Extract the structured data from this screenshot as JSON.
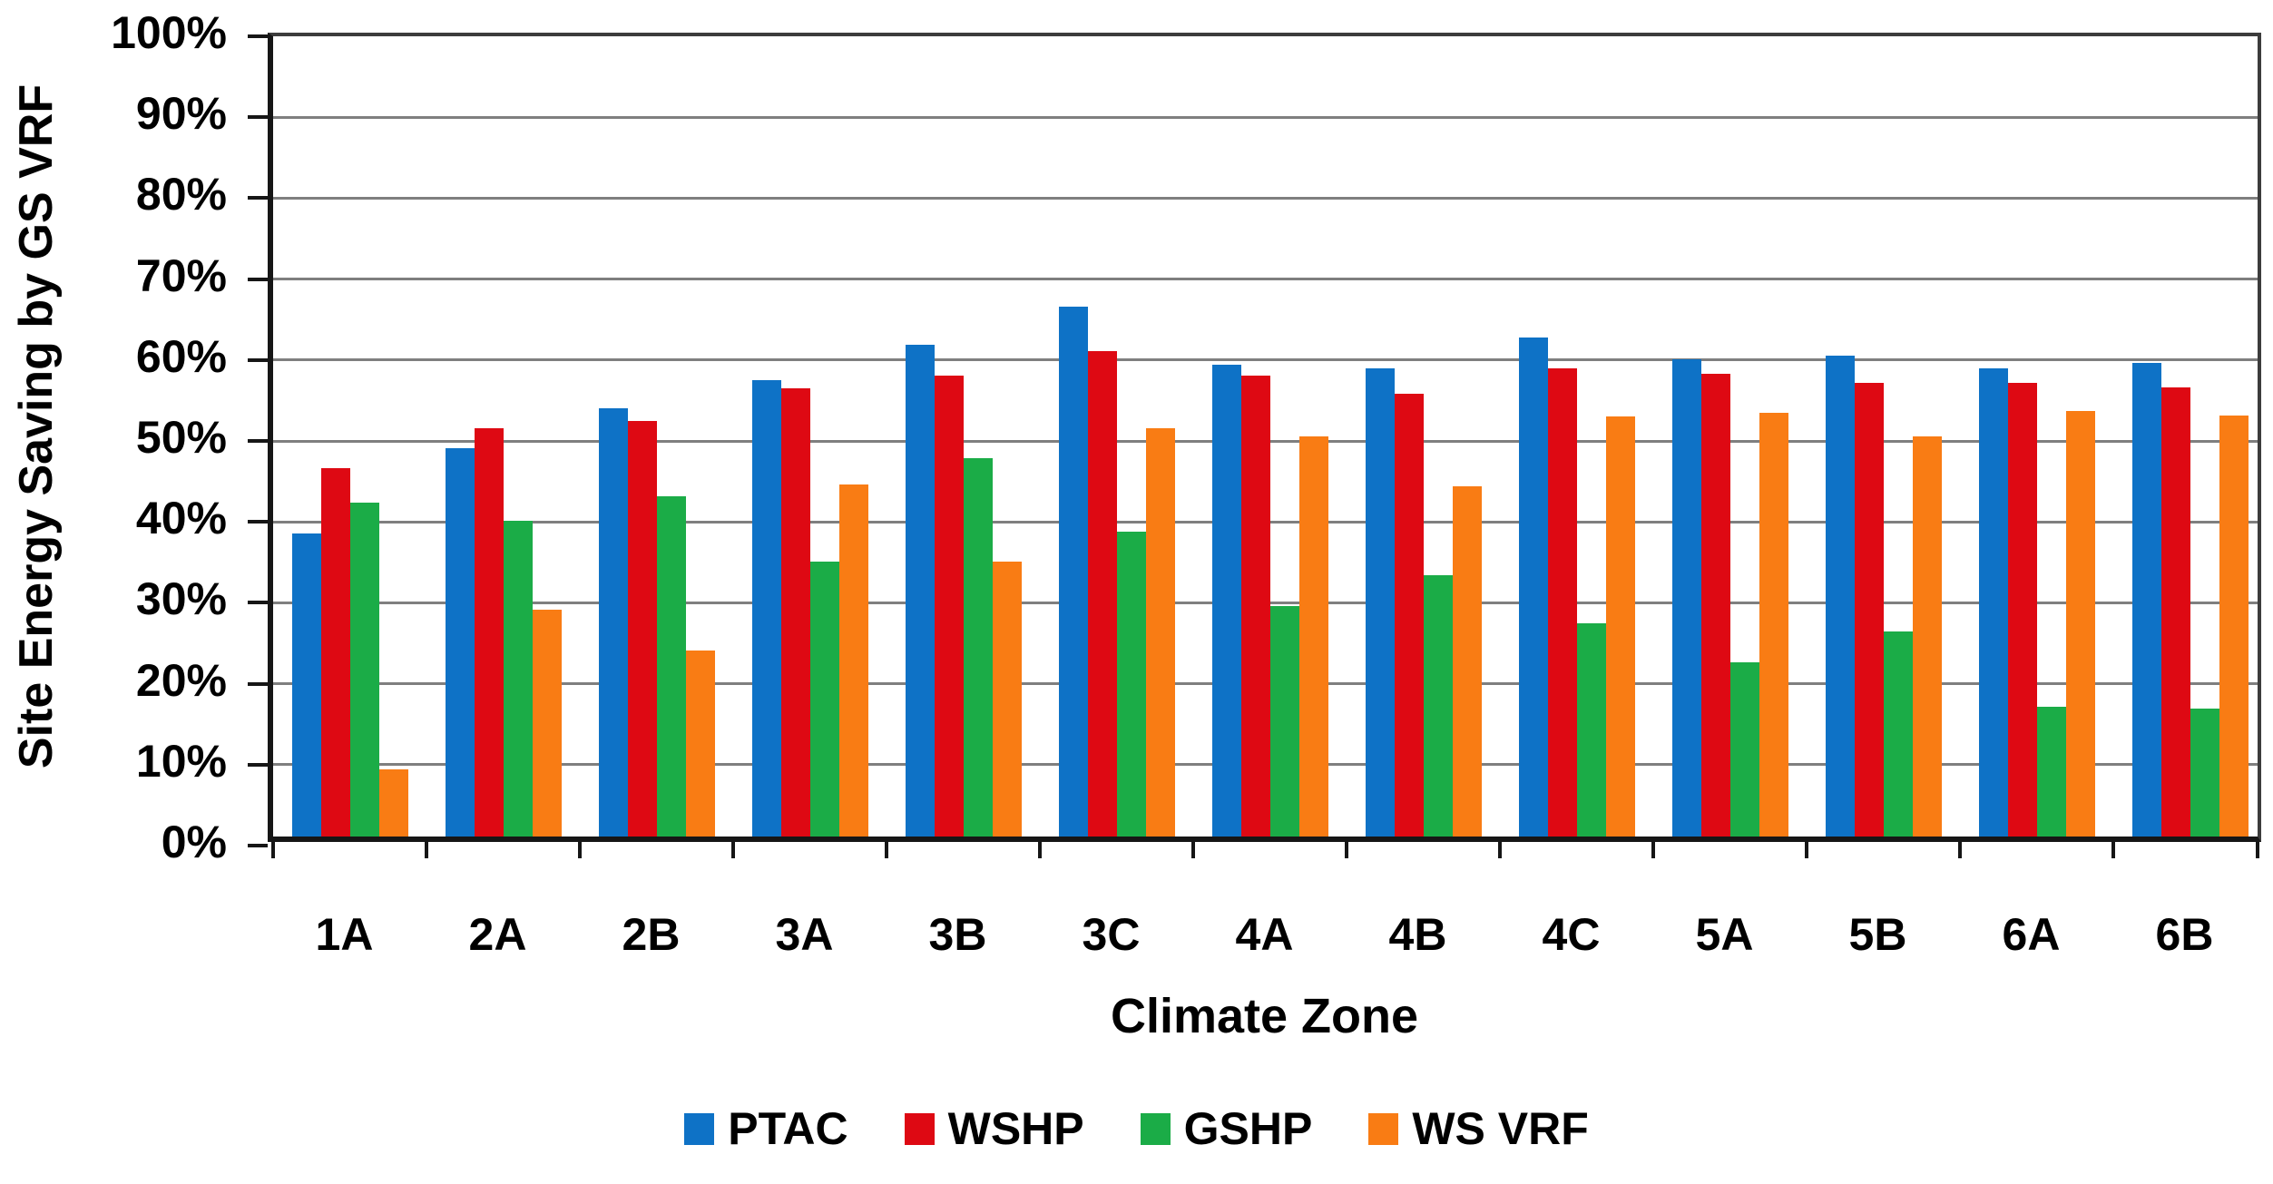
{
  "chart_data": {
    "type": "bar",
    "title": "",
    "xlabel": "Climate Zone",
    "ylabel": "Site Energy Saving by GS VRF",
    "ylim": [
      0,
      100
    ],
    "ytick_step": 10,
    "ytick_labels": [
      "0%",
      "10%",
      "20%",
      "30%",
      "40%",
      "50%",
      "60%",
      "70%",
      "80%",
      "90%",
      "100%"
    ],
    "grid": true,
    "gridline_color": "#7f7f7f",
    "axis_color": "#161616",
    "legend_position": "bottom",
    "categories": [
      "1A",
      "2A",
      "2B",
      "3A",
      "3B",
      "3C",
      "4A",
      "4B",
      "4C",
      "5A",
      "5B",
      "6A",
      "6B"
    ],
    "series": [
      {
        "name": "PTAC",
        "color": "#0E72C6",
        "values": [
          37.5,
          48.0,
          52.9,
          56.4,
          60.8,
          65.5,
          58.3,
          57.9,
          61.7,
          59.0,
          59.4,
          57.9,
          58.5
        ]
      },
      {
        "name": "WSHP",
        "color": "#DE0913",
        "values": [
          45.5,
          50.4,
          51.3,
          55.4,
          57.0,
          60.0,
          57.0,
          54.7,
          57.9,
          57.2,
          56.1,
          56.1,
          55.5
        ]
      },
      {
        "name": "GSHP",
        "color": "#1BAC47",
        "values": [
          41.3,
          39.0,
          42.0,
          34.0,
          46.8,
          37.7,
          28.5,
          32.3,
          26.4,
          21.5,
          25.3,
          16.0,
          15.8
        ]
      },
      {
        "name": "WS VRF",
        "color": "#F97C14",
        "values": [
          8.3,
          28.0,
          23.0,
          43.5,
          34.0,
          50.4,
          49.4,
          43.3,
          51.9,
          52.3,
          49.4,
          52.6,
          52.0
        ]
      }
    ]
  }
}
